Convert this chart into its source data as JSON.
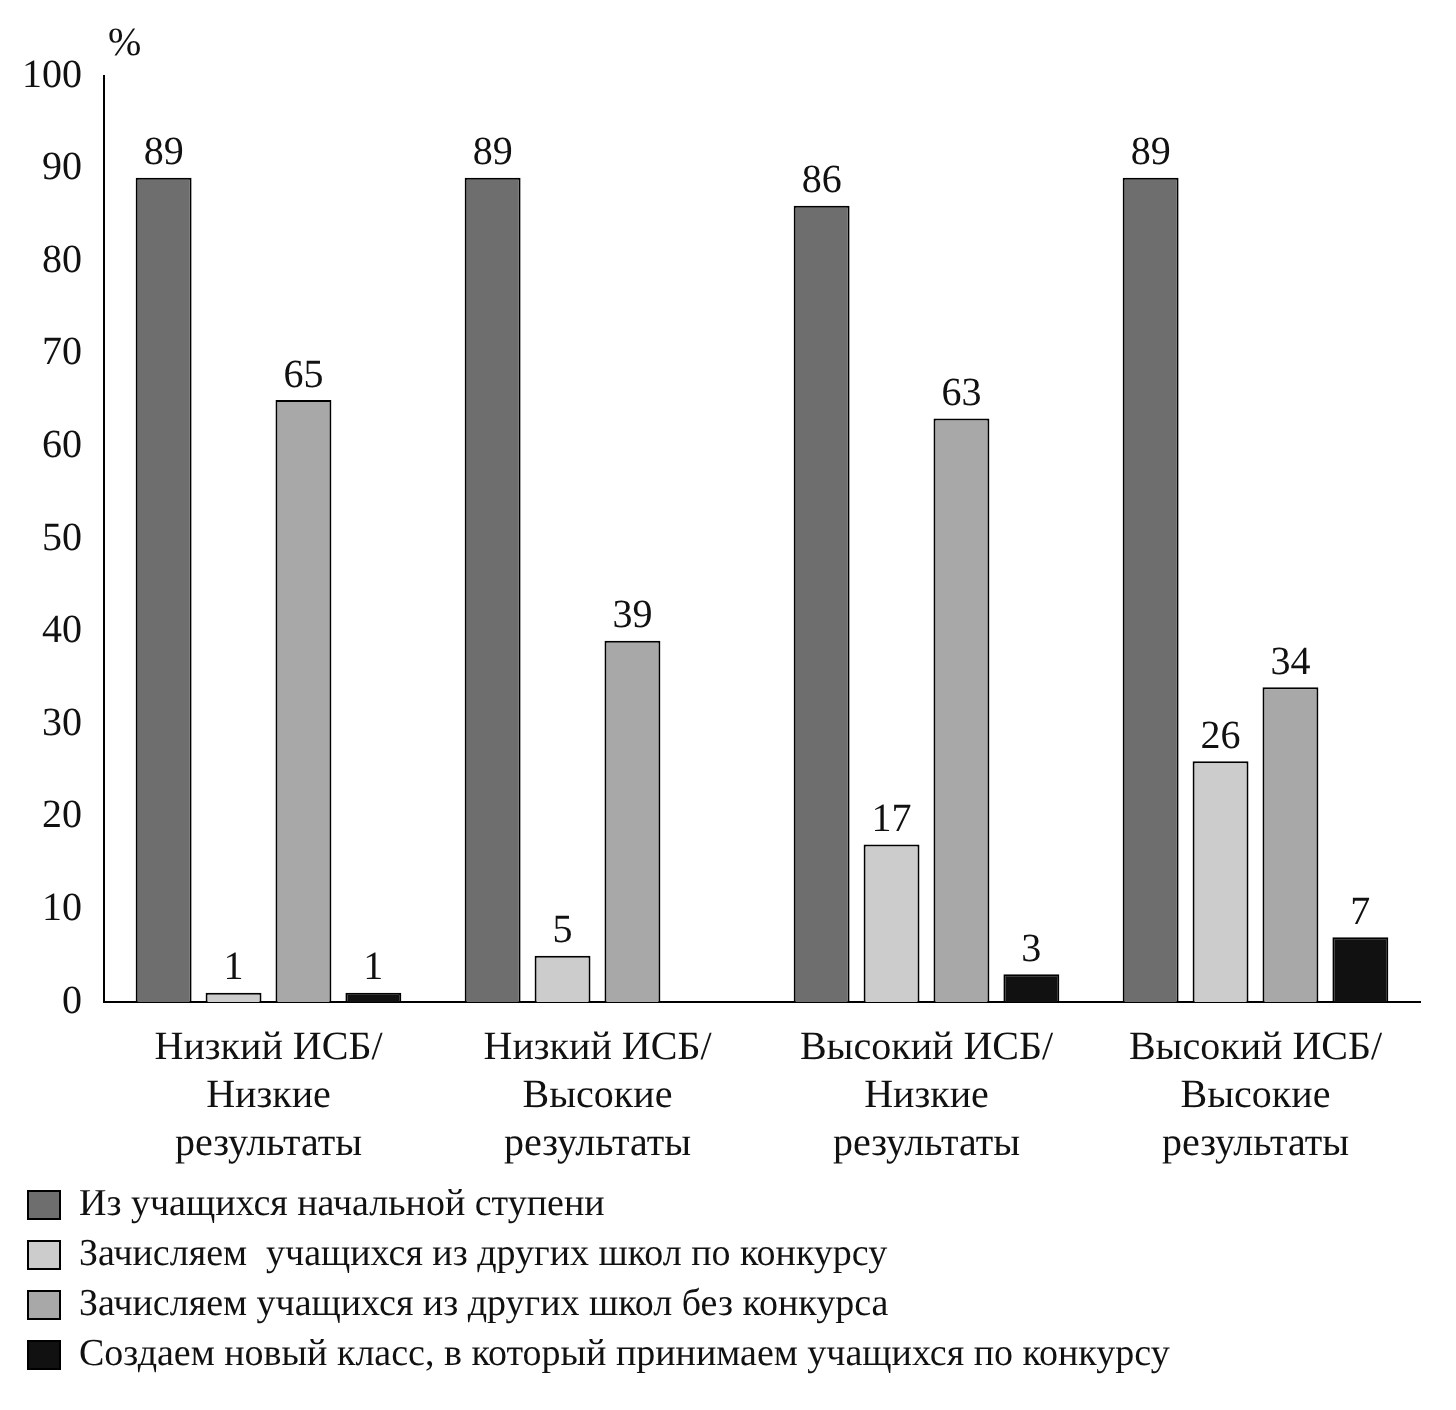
{
  "chart_data": {
    "type": "bar",
    "ylabel": "%",
    "categories": [
      "Низкий ИСБ/\nНизкие\nрезультаты",
      "Низкий ИСБ/\nВысокие\nрезультаты",
      "Высокий ИСБ/\nНизкие\nрезультаты",
      "Высокий ИСБ/\nВысокие\nрезультаты"
    ],
    "series": [
      {
        "name": "Из учащихся начальной ступени",
        "color": "#6e6e6e",
        "values": [
          89,
          89,
          86,
          89
        ]
      },
      {
        "name": "Зачисляем  учащихся из других школ по конкурсу",
        "color": "#cccccc",
        "values": [
          1,
          5,
          17,
          26
        ]
      },
      {
        "name": "Зачисляем учащихся из других школ без конкурса",
        "color": "#a8a8a8",
        "values": [
          65,
          39,
          63,
          34
        ]
      },
      {
        "name": "Создаем новый класс, в который принимаем учащихся по конкурсу",
        "color": "#111111",
        "values": [
          1,
          null,
          3,
          7
        ]
      }
    ],
    "ylim": [
      0,
      100
    ],
    "yticks": [
      0,
      10,
      20,
      30,
      40,
      50,
      60,
      70,
      80,
      90,
      100
    ],
    "grid": false,
    "legend": "bottom",
    "data_labels": true
  }
}
